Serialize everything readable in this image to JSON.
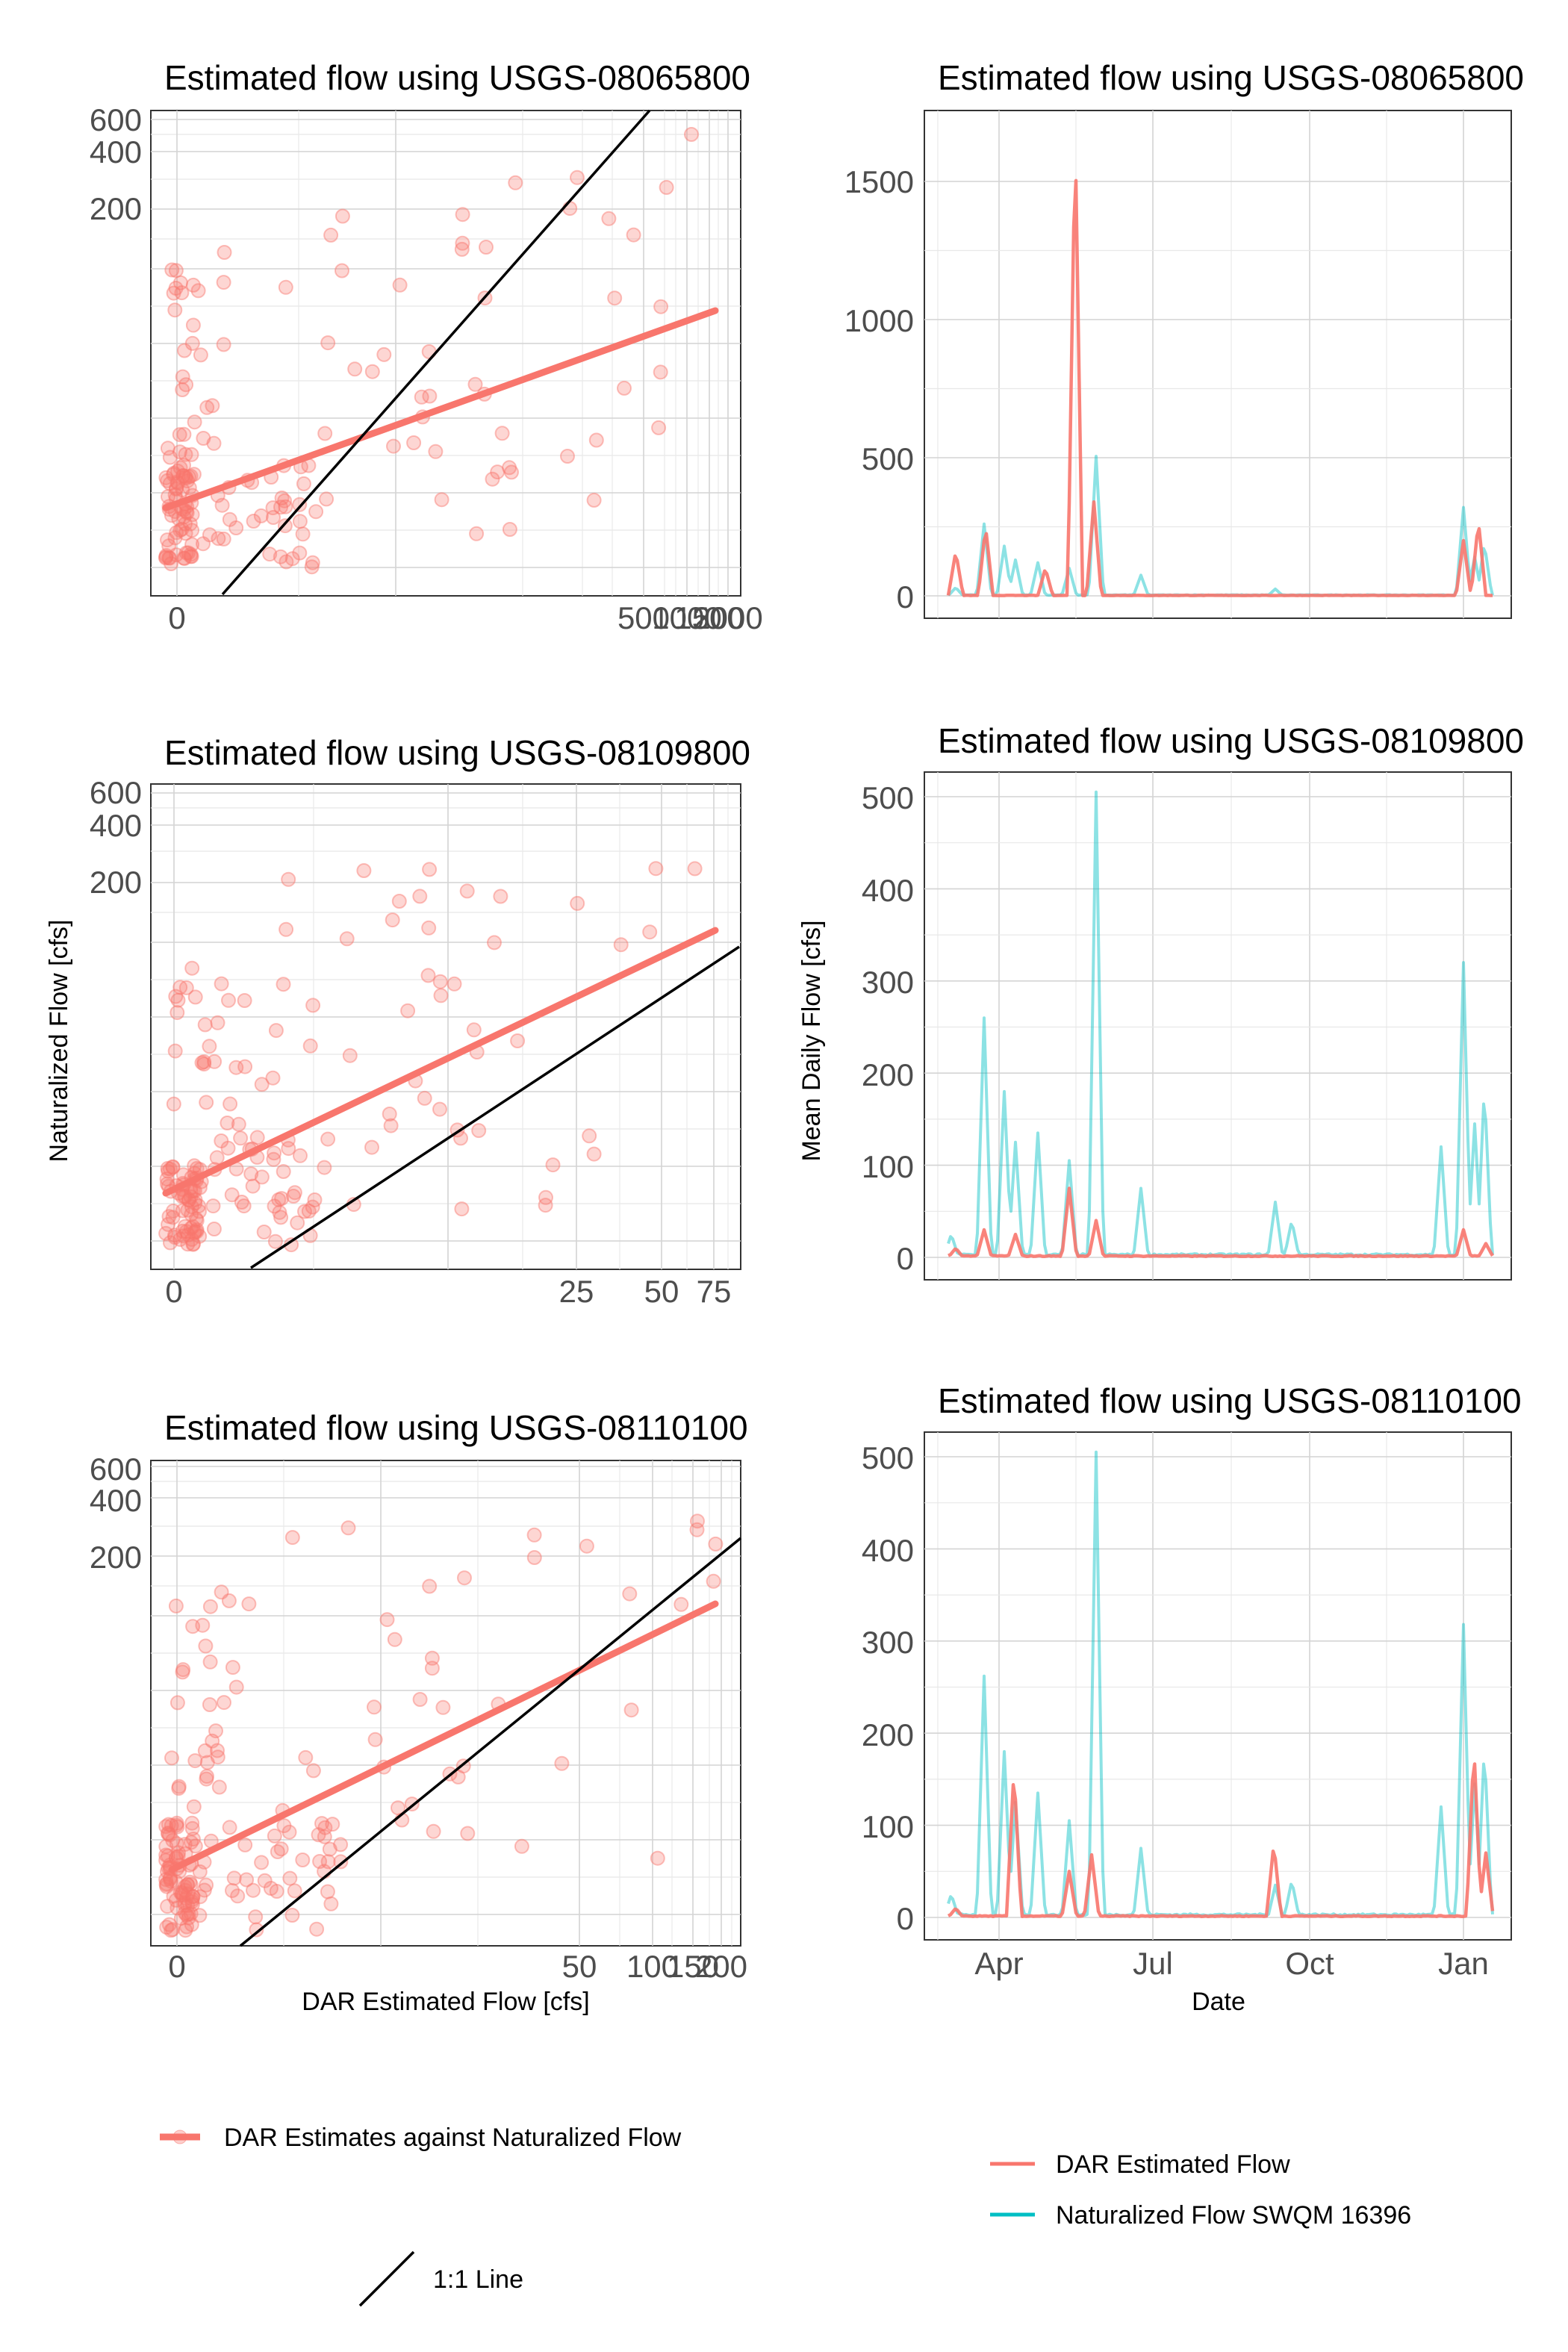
{
  "colors": {
    "dar": "#F8766D",
    "nat": "#00BFC4",
    "identity": "#000000"
  },
  "labels": {
    "y_left": "Naturalized Flow [cfs]",
    "y_right": "Mean Daily Flow [cfs]",
    "x_left": "DAR Estimated Flow [cfs]",
    "x_right": "Date"
  },
  "legend": {
    "scatter": "DAR Estimates against Naturalized Flow",
    "identity": "1:1 Line",
    "dar": "DAR Estimated Flow",
    "nat": "Naturalized Flow SWQM 16396"
  },
  "chart_data": [
    {
      "type": "scatter",
      "title": "Estimated flow using USGS-08065800",
      "x_ticks": [
        "0",
        "500",
        "1000",
        "1500",
        "2000"
      ],
      "y_ticks": [
        "200",
        "400",
        "600"
      ],
      "x_scale": "pseudo-log",
      "y_scale": "pseudo-log"
    },
    {
      "type": "line",
      "title": "Estimated flow using USGS-08065800",
      "ylim": [
        0,
        1700
      ],
      "y_ticks": [
        "0",
        "500",
        "1000",
        "1500"
      ]
    },
    {
      "type": "scatter",
      "title": "Estimated flow using USGS-08109800",
      "x_ticks": [
        "0",
        "25",
        "50",
        "75"
      ],
      "y_ticks": [
        "200",
        "400",
        "600"
      ],
      "x_scale": "pseudo-log",
      "y_scale": "pseudo-log"
    },
    {
      "type": "line",
      "title": "Estimated flow using USGS-08109800",
      "ylim": [
        0,
        520
      ],
      "y_ticks": [
        "0",
        "100",
        "200",
        "300",
        "400",
        "500"
      ]
    },
    {
      "type": "scatter",
      "title": "Estimated flow using USGS-08110100",
      "x_ticks": [
        "0",
        "50",
        "100",
        "150",
        "200"
      ],
      "y_ticks": [
        "200",
        "400",
        "600"
      ],
      "x_scale": "pseudo-log",
      "y_scale": "pseudo-log"
    },
    {
      "type": "line",
      "title": "Estimated flow using USGS-08110100",
      "ylim": [
        0,
        520
      ],
      "y_ticks": [
        "0",
        "100",
        "200",
        "300",
        "400",
        "500"
      ],
      "x_ticks": [
        "Apr",
        "Jul",
        "Oct",
        "Jan"
      ]
    }
  ]
}
